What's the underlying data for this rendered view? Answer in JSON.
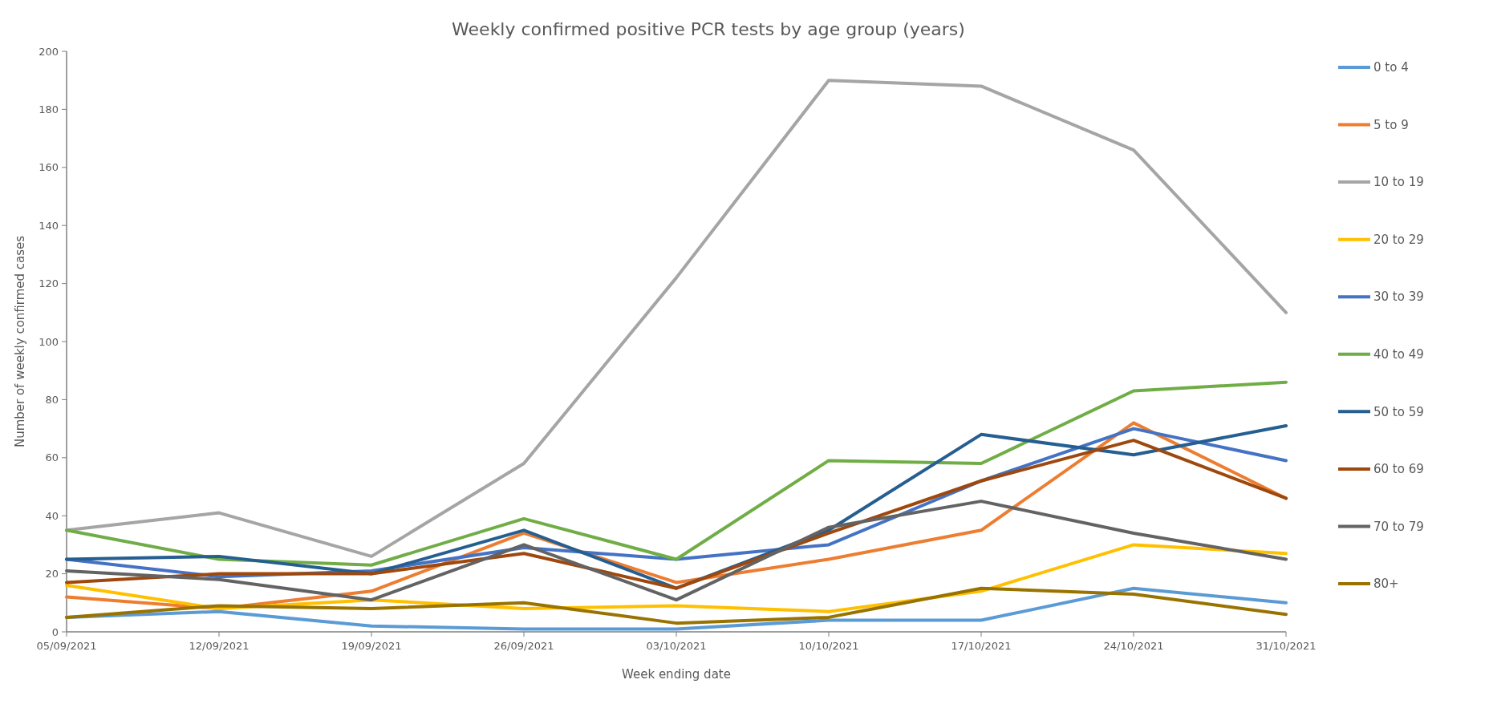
{
  "chart_data": {
    "type": "line",
    "title": "Weekly confirmed positive PCR tests by age group (years)",
    "xlabel": "Week ending date",
    "ylabel": "Number of weekly confirmed cases",
    "categories": [
      "05/09/2021",
      "12/09/2021",
      "19/09/2021",
      "26/09/2021",
      "03/10/2021",
      "10/10/2021",
      "17/10/2021",
      "24/10/2021",
      "31/10/2021"
    ],
    "ylim": [
      0,
      200
    ],
    "yticks": [
      0,
      20,
      40,
      60,
      80,
      100,
      120,
      140,
      160,
      180,
      200
    ],
    "grid": false,
    "legend": "right",
    "marker": "none",
    "line_style": "solid",
    "series": [
      {
        "name": "0 to 4",
        "color": "#5b9bd5",
        "values": [
          5,
          7,
          2,
          1,
          1,
          4,
          4,
          15,
          10
        ]
      },
      {
        "name": "5 to 9",
        "color": "#ed7d31",
        "values": [
          12,
          8,
          14,
          34,
          17,
          25,
          35,
          72,
          46
        ]
      },
      {
        "name": "10 to 19",
        "color": "#a5a5a5",
        "values": [
          35,
          41,
          26,
          58,
          122,
          190,
          188,
          166,
          110
        ]
      },
      {
        "name": "20 to 29",
        "color": "#ffc000",
        "values": [
          16,
          8,
          11,
          8,
          9,
          7,
          14,
          30,
          27
        ]
      },
      {
        "name": "30 to 39",
        "color": "#4472c4",
        "values": [
          25,
          19,
          21,
          29,
          25,
          30,
          52,
          70,
          59
        ]
      },
      {
        "name": "40 to 49",
        "color": "#70ad47",
        "values": [
          35,
          25,
          23,
          39,
          25,
          59,
          58,
          83,
          86
        ]
      },
      {
        "name": "50 to 59",
        "color": "#255e91",
        "values": [
          25,
          26,
          20,
          35,
          15,
          35,
          68,
          61,
          71
        ]
      },
      {
        "name": "60 to 69",
        "color": "#9e480e",
        "values": [
          17,
          20,
          20,
          27,
          15,
          34,
          52,
          66,
          46
        ]
      },
      {
        "name": "70 to 79",
        "color": "#636363",
        "values": [
          21,
          18,
          11,
          30,
          11,
          36,
          45,
          34,
          25
        ]
      },
      {
        "name": "80+",
        "color": "#997300",
        "values": [
          5,
          9,
          8,
          10,
          3,
          5,
          15,
          13,
          6
        ]
      }
    ]
  }
}
